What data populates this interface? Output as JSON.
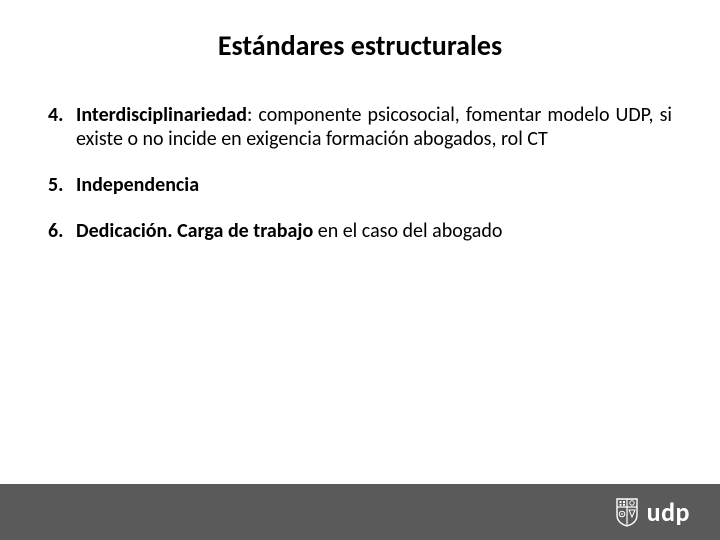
{
  "title": {
    "text": "Estándares estructurales",
    "fontsize": 28,
    "weight": 700,
    "color": "#000000"
  },
  "items": [
    {
      "num": "4.",
      "bold": "Interdisciplinariedad",
      "rest": ": componente psicosocial, fomentar modelo UDP, si existe o no incide en exigencia formación abogados, rol CT",
      "justify": true
    },
    {
      "num": "5.",
      "bold": "Independencia",
      "rest": "",
      "justify": false
    },
    {
      "num": "6.",
      "bold": "Dedicación. Carga de trabajo",
      "rest": " en el caso del abogado",
      "justify": false
    }
  ],
  "list_fontsize": 20,
  "footer": {
    "height": 56,
    "bg": "#5a5a5a",
    "logo_text": "udp",
    "logo_fontsize": 26,
    "logo_color": "#ffffff"
  }
}
